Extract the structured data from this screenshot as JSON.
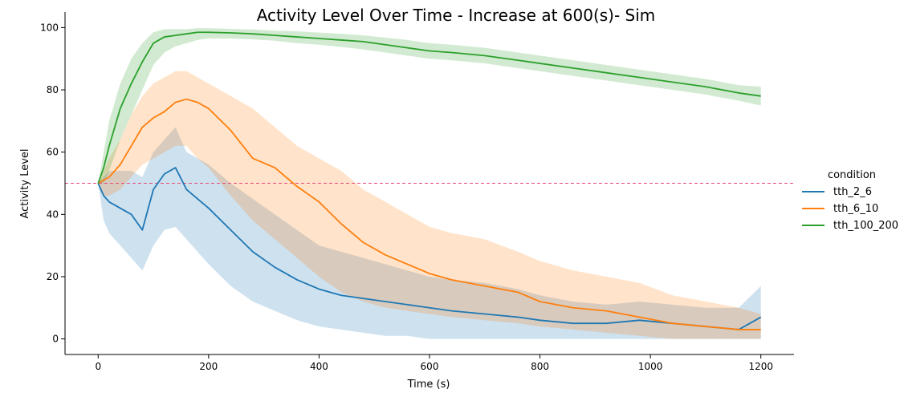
{
  "chart_data": {
    "type": "line",
    "title": "Activity Level Over Time - Increase at 600(s)- Sim",
    "xlabel": "Time (s)",
    "ylabel": "Activity Level",
    "xlim": [
      -60,
      1260
    ],
    "ylim": [
      -5,
      105
    ],
    "x_ticks": [
      0,
      200,
      400,
      600,
      800,
      1000,
      1200
    ],
    "y_ticks": [
      0,
      20,
      40,
      60,
      80,
      100
    ],
    "grid": false,
    "legend": {
      "title": "condition",
      "placement": "right-center"
    },
    "reference_line": {
      "y": 50,
      "style": "dashed",
      "color": "#e8497a"
    },
    "series": [
      {
        "name": "tth_2_6",
        "color": "#1f77b4",
        "x": [
          0,
          10,
          20,
          40,
          60,
          80,
          100,
          120,
          140,
          160,
          180,
          200,
          240,
          280,
          320,
          360,
          400,
          440,
          480,
          520,
          560,
          600,
          640,
          700,
          760,
          800,
          860,
          920,
          980,
          1040,
          1100,
          1160,
          1200
        ],
        "mean": [
          50,
          46,
          44,
          42,
          40,
          35,
          48,
          53,
          55,
          48,
          45,
          42,
          35,
          28,
          23,
          19,
          16,
          14,
          13,
          12,
          11,
          10,
          9,
          8,
          7,
          6,
          5,
          5,
          6,
          5,
          4,
          3,
          7
        ],
        "lower": [
          50,
          38,
          34,
          30,
          26,
          22,
          30,
          35,
          36,
          32,
          28,
          24,
          17,
          12,
          9,
          6,
          4,
          3,
          2,
          1,
          1,
          0,
          0,
          0,
          0,
          0,
          0,
          0,
          0,
          0,
          0,
          0,
          0
        ],
        "upper": [
          50,
          52,
          54,
          54,
          54,
          52,
          60,
          64,
          68,
          60,
          58,
          56,
          50,
          45,
          40,
          35,
          30,
          28,
          26,
          24,
          22,
          20,
          19,
          18,
          16,
          14,
          12,
          11,
          12,
          11,
          10,
          10,
          17
        ]
      },
      {
        "name": "tth_6_10",
        "color": "#ff7f0e",
        "x": [
          0,
          10,
          20,
          40,
          60,
          80,
          100,
          120,
          140,
          160,
          180,
          200,
          240,
          280,
          320,
          360,
          400,
          440,
          480,
          520,
          560,
          600,
          640,
          700,
          760,
          800,
          860,
          920,
          980,
          1040,
          1100,
          1160,
          1200
        ],
        "mean": [
          50,
          51,
          52,
          56,
          62,
          68,
          71,
          73,
          76,
          77,
          76,
          74,
          67,
          58,
          55,
          49,
          44,
          37,
          31,
          27,
          24,
          21,
          19,
          17,
          15,
          12,
          10,
          9,
          7,
          5,
          4,
          3,
          3
        ],
        "lower": [
          50,
          46,
          46,
          48,
          52,
          56,
          58,
          60,
          62,
          62,
          58,
          55,
          46,
          38,
          32,
          26,
          20,
          15,
          12,
          10,
          9,
          8,
          7,
          6,
          5,
          4,
          3,
          2,
          1,
          0,
          0,
          0,
          0
        ],
        "upper": [
          50,
          54,
          58,
          64,
          72,
          78,
          82,
          84,
          86,
          86,
          84,
          82,
          78,
          74,
          68,
          62,
          58,
          54,
          48,
          44,
          40,
          36,
          34,
          32,
          28,
          25,
          22,
          20,
          18,
          14,
          12,
          10,
          8
        ]
      },
      {
        "name": "tth_100_200",
        "color": "#2ca02c",
        "x": [
          0,
          10,
          20,
          40,
          60,
          80,
          100,
          120,
          140,
          160,
          180,
          200,
          240,
          280,
          320,
          360,
          400,
          440,
          480,
          520,
          560,
          600,
          640,
          700,
          760,
          800,
          860,
          920,
          980,
          1040,
          1100,
          1160,
          1200
        ],
        "mean": [
          50,
          55,
          62,
          74,
          82,
          89,
          95,
          97,
          97.5,
          98,
          98.5,
          98.5,
          98.3,
          98,
          97.5,
          97,
          96.5,
          96,
          95.5,
          94.5,
          93.5,
          92.5,
          92,
          91,
          89.5,
          88.5,
          87,
          85.5,
          84,
          82.5,
          81,
          79,
          78
        ],
        "lower": [
          50,
          50,
          54,
          64,
          72,
          80,
          88,
          92,
          94,
          95,
          96,
          96.5,
          96.5,
          96.2,
          95.8,
          95,
          94.5,
          93.8,
          93,
          92,
          91,
          90,
          89.5,
          88.5,
          87,
          86,
          84.5,
          83,
          81.5,
          80,
          78.5,
          76.5,
          75
        ],
        "upper": [
          50,
          60,
          70,
          82,
          90,
          95,
          98.5,
          99.5,
          99.5,
          99.5,
          99.8,
          99.8,
          99.6,
          99.4,
          99,
          98.8,
          98.4,
          98,
          97.5,
          96.8,
          96,
          95,
          94.5,
          93.5,
          92,
          91,
          89.5,
          88,
          86.5,
          85,
          83.5,
          81.5,
          81
        ]
      }
    ]
  }
}
